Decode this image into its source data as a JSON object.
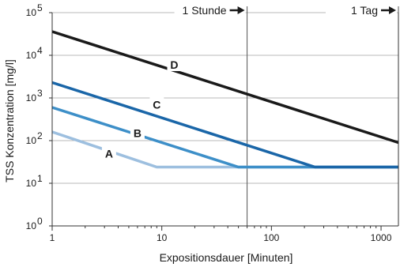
{
  "chart_data": {
    "type": "line",
    "xscale": "log",
    "yscale": "log",
    "xlim": [
      1,
      1440
    ],
    "ylim": [
      1,
      100000
    ],
    "xticks": [
      1,
      10,
      100,
      1000
    ],
    "xtick_labels": [
      "1",
      "10",
      "100",
      "1000"
    ],
    "yticks": [
      1,
      10,
      100,
      1000,
      10000,
      100000
    ],
    "ytick_labels": [
      {
        "base": "10",
        "exp": "0"
      },
      {
        "base": "10",
        "exp": "1"
      },
      {
        "base": "10",
        "exp": "2"
      },
      {
        "base": "10",
        "exp": "3"
      },
      {
        "base": "10",
        "exp": "4"
      },
      {
        "base": "10",
        "exp": "5"
      }
    ],
    "xlabel": "Expositionsdauer [Minuten]",
    "ylabel": "TSS Konzentration [mg/l]",
    "grid": "horizontal",
    "series": [
      {
        "name": "A",
        "color": "#9dbfdf",
        "x": [
          1,
          9,
          1440
        ],
        "y": [
          160,
          24,
          24
        ]
      },
      {
        "name": "B",
        "color": "#3d8fc8",
        "x": [
          1,
          50,
          1440
        ],
        "y": [
          600,
          24,
          24
        ]
      },
      {
        "name": "C",
        "color": "#1a66a8",
        "x": [
          1,
          250,
          1440
        ],
        "y": [
          2300,
          24,
          24
        ]
      },
      {
        "name": "D",
        "color": "#1a1a1a",
        "x": [
          1,
          1440
        ],
        "y": [
          36000,
          90
        ]
      }
    ],
    "series_labels": [
      {
        "text": "A",
        "x": 3.3,
        "y": 50
      },
      {
        "text": "B",
        "x": 6.0,
        "y": 150
      },
      {
        "text": "C",
        "x": 9.0,
        "y": 700
      },
      {
        "text": "D",
        "x": 13.0,
        "y": 6000
      }
    ],
    "reference_lines": [
      {
        "x": 60,
        "label": "1 Stunde"
      },
      {
        "x": 1440,
        "label": "1 Tag"
      }
    ]
  }
}
